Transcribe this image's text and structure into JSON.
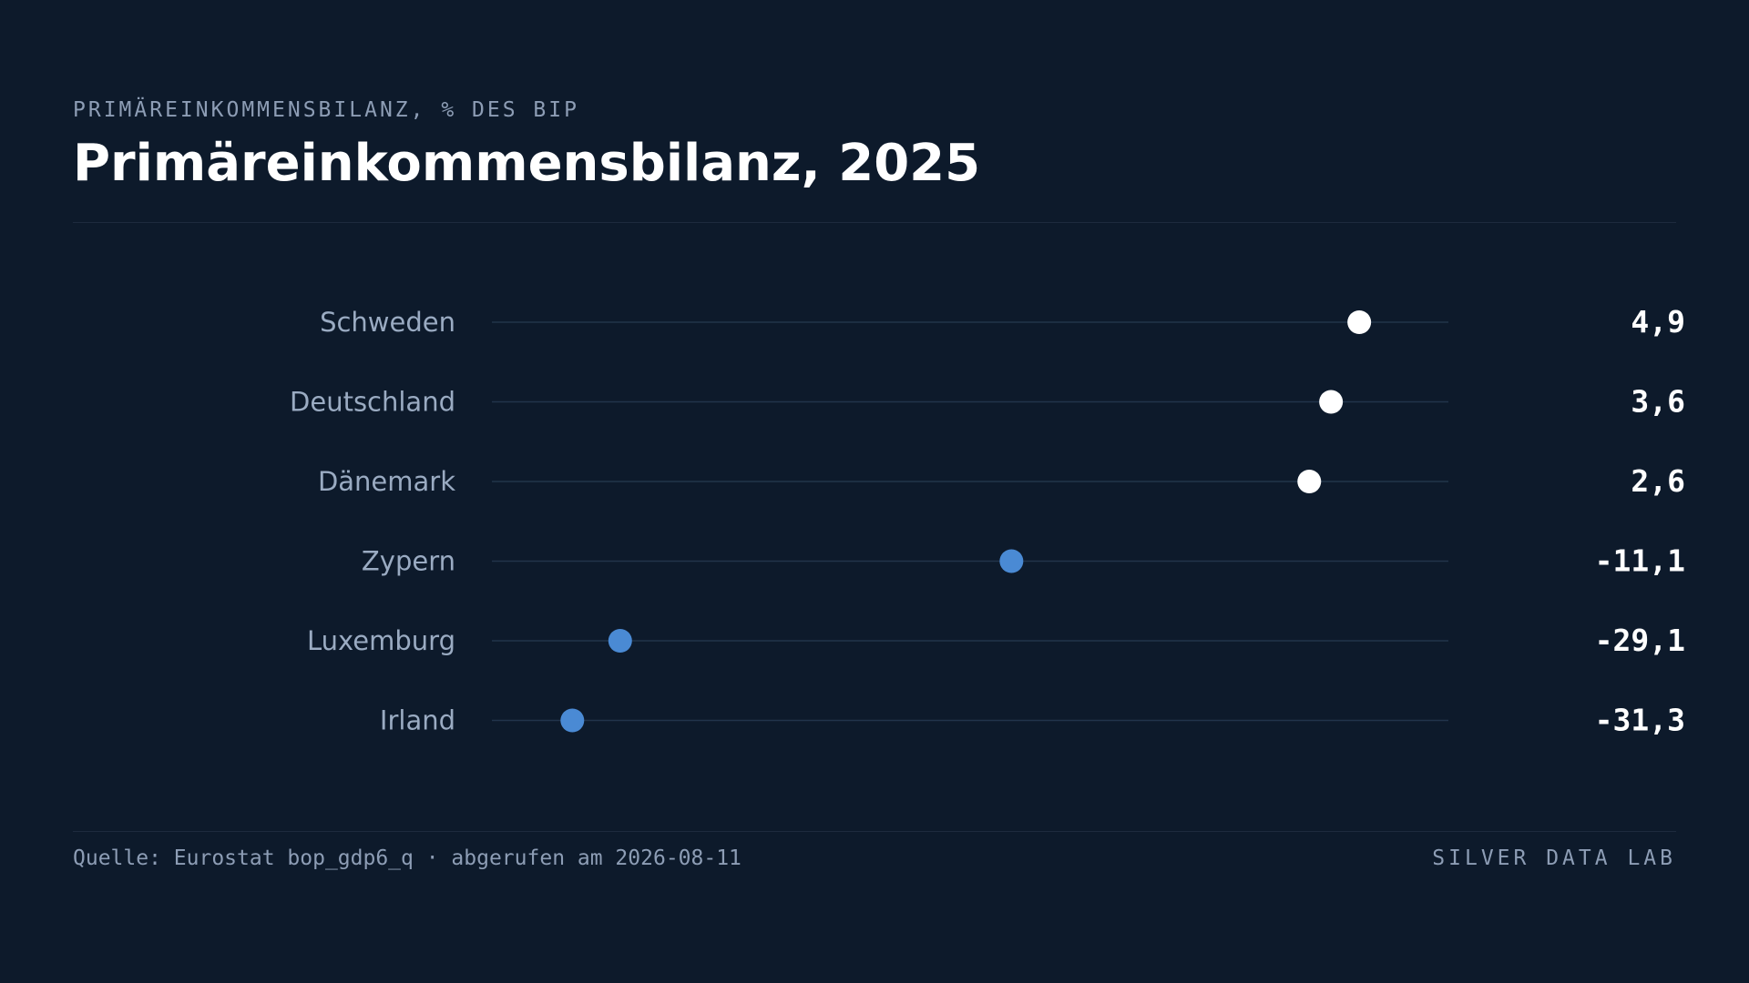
{
  "header": {
    "eyebrow": "PRIMÄREINKOMMENSBILANZ, % DES BIP",
    "title": "Primäreinkommensbilanz, 2025"
  },
  "chart_data": {
    "type": "dot",
    "title": "Primäreinkommensbilanz, 2025",
    "subtitle": "PRIMÄREINKOMMENSBILANZ, % DES BIP",
    "categories": [
      "Schweden",
      "Deutschland",
      "Dänemark",
      "Zypern",
      "Luxemburg",
      "Irland"
    ],
    "values": [
      4.9,
      3.6,
      2.6,
      -11.1,
      -29.1,
      -31.3
    ],
    "value_labels": [
      "4,9",
      "3,6",
      "2,6",
      "-11,1",
      "-29,1",
      "-31,3"
    ],
    "xlim": [
      -35,
      9
    ],
    "grid": false,
    "legend": "none",
    "colors": {
      "positive": "#ffffff",
      "negative": "#4a8ad4",
      "track": "#22344b",
      "label": "#9aabc2",
      "value": "#ffffff"
    }
  },
  "footer": {
    "source": "Quelle: Eurostat bop_gdp6_q · abgerufen am 2026-08-11",
    "brand": "SILVER DATA LAB"
  }
}
